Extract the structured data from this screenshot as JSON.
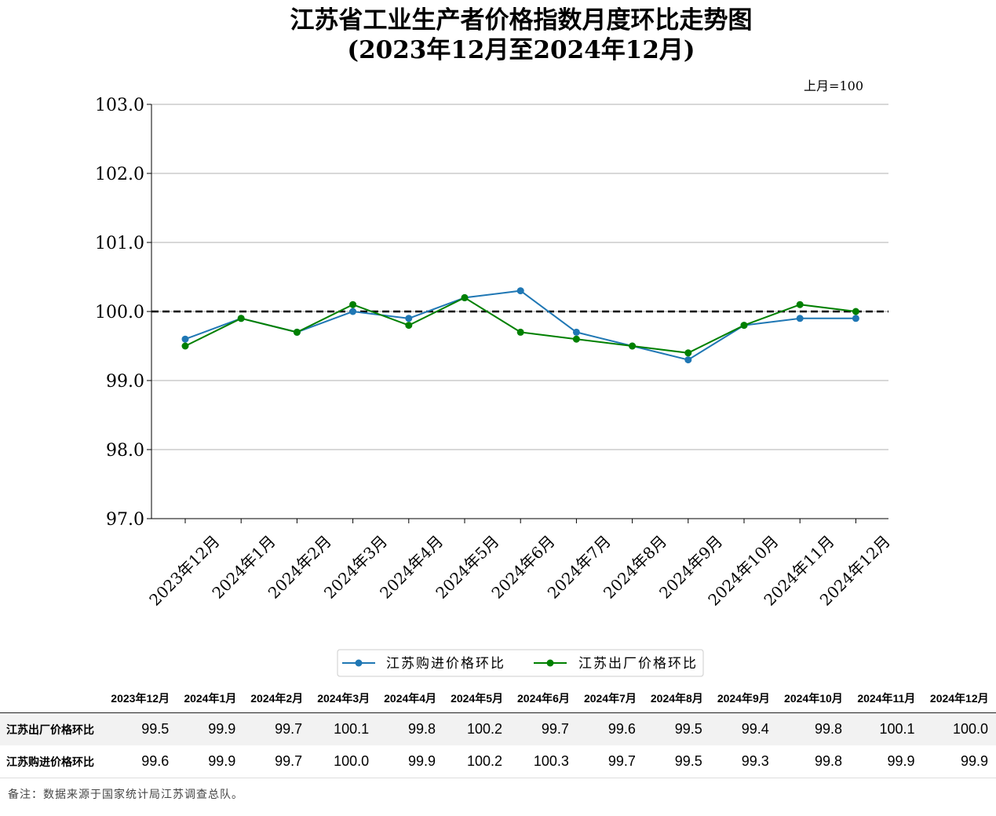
{
  "chart_data": {
    "type": "line",
    "title": "江苏省工业生产者价格指数月度环比走势图",
    "subtitle": "(2023年12月至2024年12月)",
    "unit_note": "上月=100",
    "categories": [
      "2023年12月",
      "2024年1月",
      "2024年2月",
      "2024年3月",
      "2024年4月",
      "2024年5月",
      "2024年6月",
      "2024年7月",
      "2024年8月",
      "2024年9月",
      "2024年10月",
      "2024年11月",
      "2024年12月"
    ],
    "series": [
      {
        "name": "江苏购进价格环比",
        "color": "#1f77b4",
        "values": [
          99.6,
          99.9,
          99.7,
          100.0,
          99.9,
          100.2,
          100.3,
          99.7,
          99.5,
          99.3,
          99.8,
          99.9,
          99.9
        ]
      },
      {
        "name": "江苏出厂价格环比",
        "color": "#008000",
        "values": [
          99.5,
          99.9,
          99.7,
          100.1,
          99.8,
          100.2,
          99.7,
          99.6,
          99.5,
          99.4,
          99.8,
          100.1,
          100.0
        ]
      }
    ],
    "reference_line": {
      "value": 100.0,
      "style": "dashed",
      "color": "#000000"
    },
    "ylim": [
      97.0,
      103.0
    ],
    "yticks": [
      "97.0",
      "98.0",
      "99.0",
      "100.0",
      "101.0",
      "102.0",
      "103.0"
    ],
    "grid": "horizontal",
    "legend": "bottom-center"
  },
  "table": {
    "header_blank": "",
    "columns": [
      "2023年12月",
      "2024年1月",
      "2024年2月",
      "2024年3月",
      "2024年4月",
      "2024年5月",
      "2024年6月",
      "2024年7月",
      "2024年8月",
      "2024年9月",
      "2024年10月",
      "2024年11月",
      "2024年12月"
    ],
    "rows": [
      {
        "label": "江苏出厂价格环比",
        "values": [
          "99.5",
          "99.9",
          "99.7",
          "100.1",
          "99.8",
          "100.2",
          "99.7",
          "99.6",
          "99.5",
          "99.4",
          "99.8",
          "100.1",
          "100.0"
        ]
      },
      {
        "label": "江苏购进价格环比",
        "values": [
          "99.6",
          "99.9",
          "99.7",
          "100.0",
          "99.9",
          "100.2",
          "100.3",
          "99.7",
          "99.5",
          "99.3",
          "99.8",
          "99.9",
          "99.9"
        ]
      }
    ]
  },
  "footnote": "备注：数据来源于国家统计局江苏调查总队。"
}
